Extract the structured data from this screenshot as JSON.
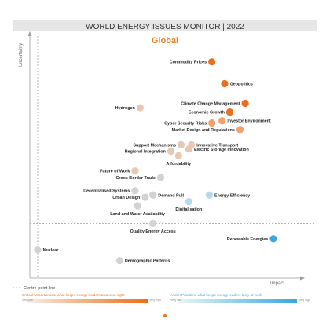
{
  "title": "WORLD ENERGY ISSUES MONITOR | 2022",
  "subtitle": "Global",
  "colors": {
    "title_bar": "#e6e6e6",
    "subtitle": "#f07f1b",
    "critical_dark": "#ec6e16",
    "critical_mid": "#f3a16c",
    "critical_light": "#e8c8b3",
    "neutral": "#d2d2d2",
    "action_light": "#b3dbed",
    "action_dark": "#3aa8dd",
    "axis": "#9a9a9a"
  },
  "legend": {
    "centre_point_label": "Centre-point line",
    "critical_text": "Critical Uncertainties: what keeps energy leaders awake at night",
    "action_text": "Action Priorities: what keeps energy leaders busy at work",
    "low_label": "Very low",
    "high_label": "Very high"
  },
  "chart_data": {
    "type": "scatter",
    "title": "WORLD ENERGY ISSUES MONITOR | 2022",
    "subtitle": "Global",
    "xlabel": "Impact",
    "ylabel": "Uncertainty",
    "xlim": [
      0,
      100
    ],
    "ylim": [
      0,
      100
    ],
    "centre_point": {
      "x": 0,
      "y": 20
    },
    "points": [
      {
        "name": "Commodity Prices",
        "x": 68,
        "y": 94,
        "category": "critical_dark",
        "label_side": "left"
      },
      {
        "name": "Geopolitics",
        "x": 73,
        "y": 84,
        "category": "critical_dark",
        "label_side": "right"
      },
      {
        "name": "Climate Change Management",
        "x": 81,
        "y": 75,
        "category": "critical_dark",
        "label_side": "left"
      },
      {
        "name": "Economic Growth",
        "x": 75,
        "y": 71,
        "category": "critical_dark",
        "label_side": "left"
      },
      {
        "name": "Hydrogen",
        "x": 40,
        "y": 73,
        "category": "critical_light",
        "label_side": "left"
      },
      {
        "name": "Investor Environment",
        "x": 72,
        "y": 67,
        "category": "critical_mid",
        "label_side": "right"
      },
      {
        "name": "Cyber Security Risks",
        "x": 68,
        "y": 66,
        "category": "critical_mid",
        "label_side": "left"
      },
      {
        "name": "Market Design and Regulations",
        "x": 79,
        "y": 63,
        "category": "critical_mid",
        "label_side": "left"
      },
      {
        "name": "Support Mechanisms",
        "x": 56,
        "y": 56,
        "category": "critical_light",
        "label_side": "left"
      },
      {
        "name": "Innovative Transport",
        "x": 60,
        "y": 56,
        "category": "critical_light",
        "label_side": "right"
      },
      {
        "name": "Electric Storage Innovation",
        "x": 59,
        "y": 54,
        "category": "critical_light",
        "label_side": "right"
      },
      {
        "name": "Regional Integration",
        "x": 52,
        "y": 53,
        "category": "critical_light",
        "label_side": "left"
      },
      {
        "name": "Affordability",
        "x": 55,
        "y": 51,
        "category": "critical_light",
        "label_side": "below"
      },
      {
        "name": "Future of Work",
        "x": 38,
        "y": 44,
        "category": "critical_light",
        "label_side": "left"
      },
      {
        "name": "Cross Border Trade",
        "x": 48,
        "y": 41,
        "category": "neutral",
        "label_side": "left"
      },
      {
        "name": "Decentralised Systems",
        "x": 38,
        "y": 35,
        "category": "neutral",
        "label_side": "left"
      },
      {
        "name": "Urban Design",
        "x": 42,
        "y": 32,
        "category": "neutral",
        "label_side": "left"
      },
      {
        "name": "Demand Pull",
        "x": 45,
        "y": 33,
        "category": "neutral",
        "label_side": "right"
      },
      {
        "name": "Land and Water Availability",
        "x": 39,
        "y": 28,
        "category": "neutral",
        "label_side": "below"
      },
      {
        "name": "Digitalisation",
        "x": 59,
        "y": 30,
        "category": "action_light",
        "label_side": "below"
      },
      {
        "name": "Energy Efficiency",
        "x": 67,
        "y": 33,
        "category": "action_light",
        "label_side": "right"
      },
      {
        "name": "Quality Energy Access",
        "x": 45,
        "y": 20,
        "category": "neutral",
        "label_side": "below"
      },
      {
        "name": "Renewable Energies",
        "x": 92,
        "y": 13,
        "category": "action_dark",
        "label_side": "left"
      },
      {
        "name": "Nuclear",
        "x": 0,
        "y": 8,
        "category": "neutral",
        "label_side": "right"
      },
      {
        "name": "Demographic Patterns",
        "x": 32,
        "y": 3,
        "category": "neutral",
        "label_side": "right"
      }
    ]
  }
}
